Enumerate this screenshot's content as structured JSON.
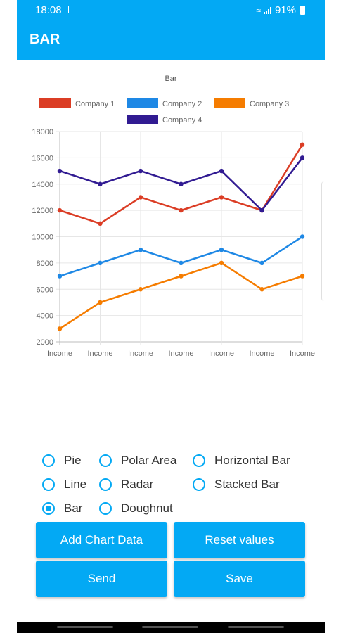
{
  "status_bar": {
    "time": "18:08",
    "battery": "91%"
  },
  "app_bar": {
    "title": "BAR"
  },
  "chart_data": {
    "type": "line",
    "title": "Bar",
    "categories": [
      "Income",
      "Income",
      "Income",
      "Income",
      "Income",
      "Income",
      "Income"
    ],
    "series": [
      {
        "name": "Company 1",
        "color": "#db3d25",
        "values": [
          12000,
          11000,
          13000,
          12000,
          13000,
          12000,
          17000
        ]
      },
      {
        "name": "Company 2",
        "color": "#1e88e5",
        "values": [
          7000,
          8000,
          9000,
          8000,
          9000,
          8000,
          10000
        ]
      },
      {
        "name": "Company 3",
        "color": "#f57c00",
        "values": [
          3000,
          5000,
          6000,
          7000,
          8000,
          6000,
          7000
        ]
      },
      {
        "name": "Company 4",
        "color": "#311b92",
        "values": [
          15000,
          14000,
          15000,
          14000,
          15000,
          12000,
          16000
        ]
      }
    ],
    "y_ticks": [
      "18000",
      "16000",
      "14000",
      "12000",
      "10000",
      "8000",
      "6000",
      "4000",
      "2000"
    ],
    "ylim": [
      2000,
      18000
    ],
    "legend_position": "top",
    "grid": true
  },
  "chart_types": [
    {
      "label": "Pie",
      "checked": false
    },
    {
      "label": "Polar Area",
      "checked": false
    },
    {
      "label": "Horizontal Bar",
      "checked": false
    },
    {
      "label": "Line",
      "checked": false
    },
    {
      "label": "Radar",
      "checked": false
    },
    {
      "label": "Stacked Bar",
      "checked": false
    },
    {
      "label": "Bar",
      "checked": true
    },
    {
      "label": "Doughnut",
      "checked": false
    }
  ],
  "buttons": {
    "add_chart_data": "Add Chart Data",
    "reset_values": "Reset values",
    "send": "Send",
    "save": "Save"
  }
}
